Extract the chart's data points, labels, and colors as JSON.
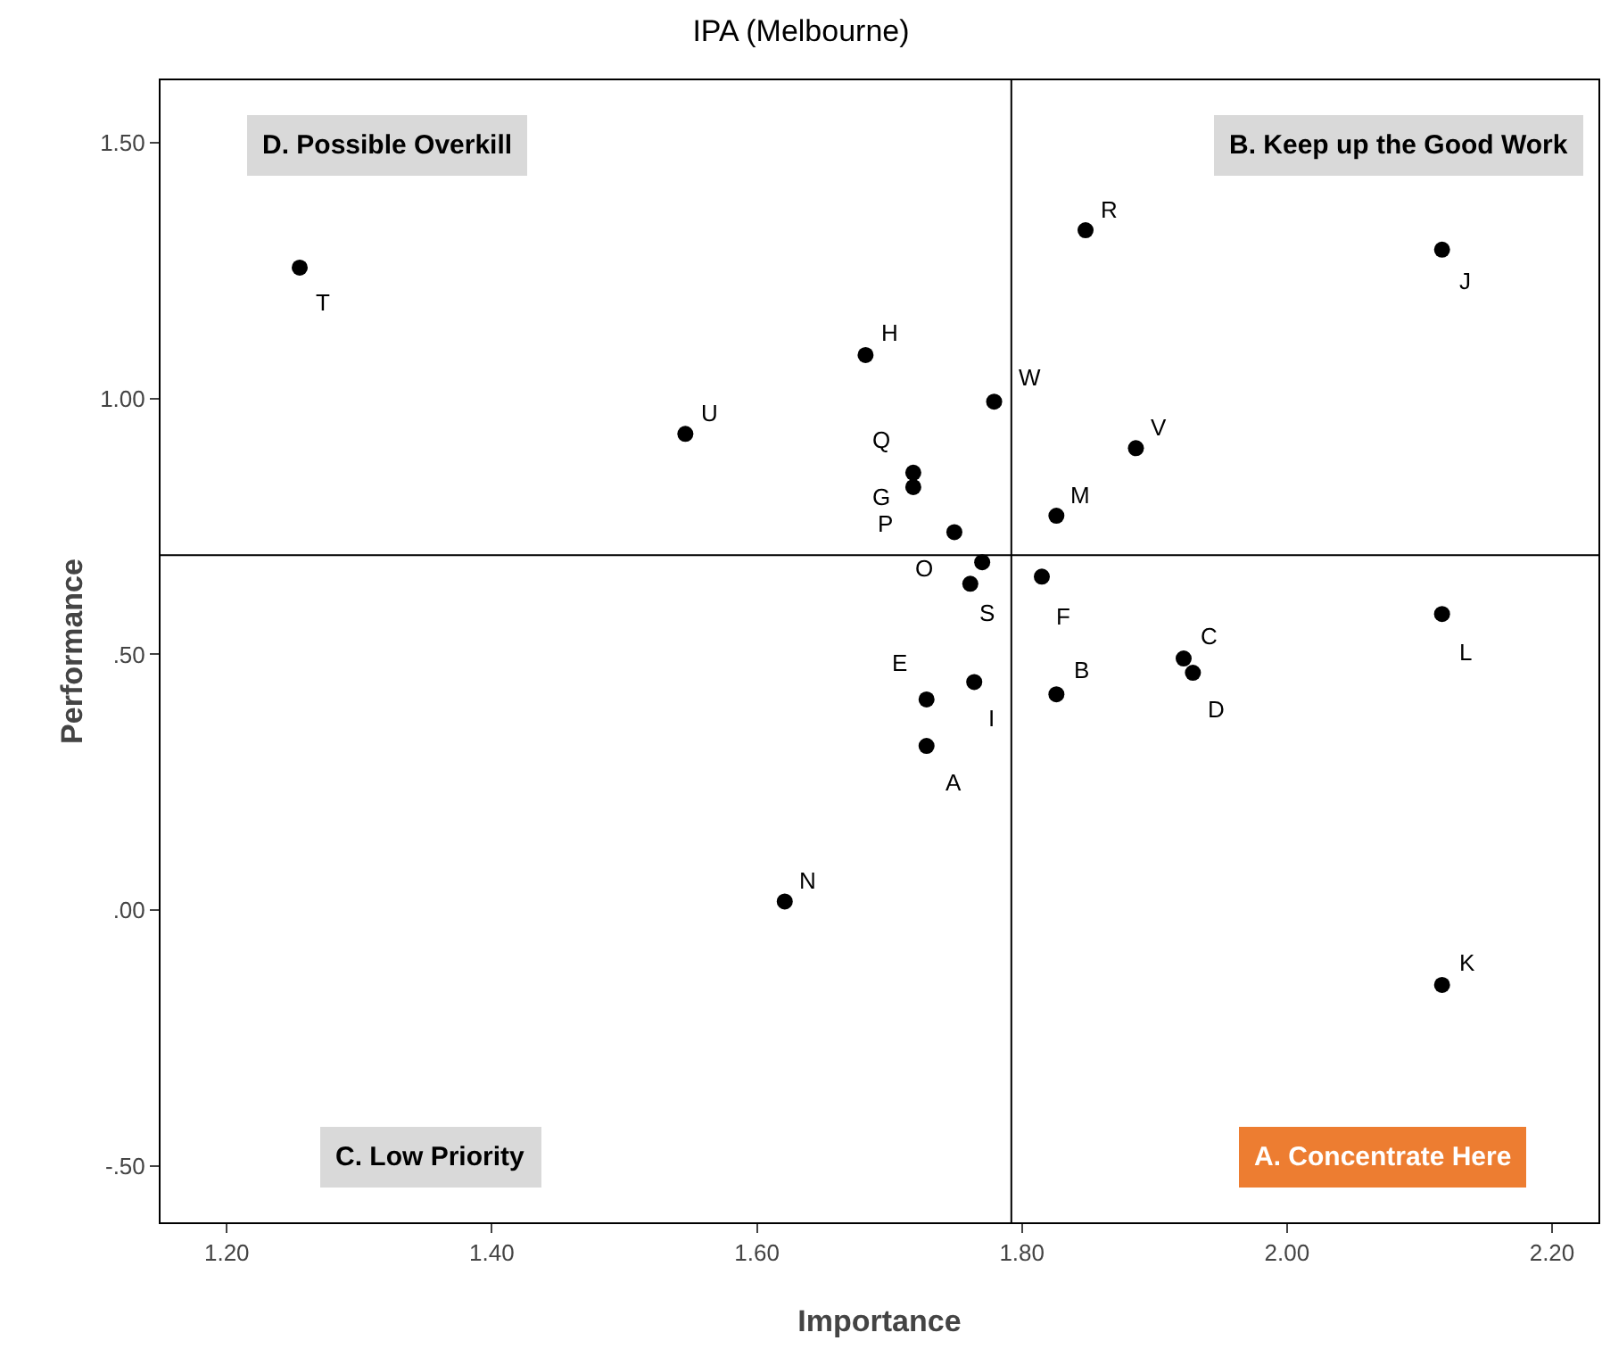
{
  "chart_data": {
    "type": "scatter",
    "title": "IPA (Melbourne)",
    "xlabel": "Importance",
    "ylabel": "Performance",
    "x": [
      1.728,
      1.826,
      1.922,
      1.929,
      1.728,
      1.815,
      1.718,
      1.682,
      1.764,
      2.117,
      2.117,
      2.117,
      1.826,
      1.621,
      1.77,
      1.749,
      1.718,
      1.848,
      1.761,
      1.255,
      1.546,
      1.886,
      1.779
    ],
    "series": [
      {
        "color": "#000000",
        "values": [
          0.321,
          0.422,
          0.492,
          0.464,
          0.412,
          0.652,
          0.827,
          1.085,
          0.446,
          1.291,
          -0.146,
          0.579,
          0.771,
          0.017,
          0.68,
          0.739,
          0.855,
          1.329,
          0.638,
          1.256,
          0.931,
          0.903,
          0.994
        ]
      }
    ],
    "marker": "circle",
    "xlim": [
      1.15,
      2.235
    ],
    "ylim": [
      -0.61,
      1.622
    ],
    "xticks": [
      {
        "value": 1.2,
        "label": "1.20"
      },
      {
        "value": 1.4,
        "label": "1.40"
      },
      {
        "value": 1.6,
        "label": "1.60"
      },
      {
        "value": 1.8,
        "label": "1.80"
      },
      {
        "value": 2.0,
        "label": "2.00"
      },
      {
        "value": 2.2,
        "label": "2.20"
      }
    ],
    "yticks": [
      {
        "value": -0.5,
        "label": "-.50"
      },
      {
        "value": 0,
        "label": ".00"
      },
      {
        "value": 0.5,
        "label": ".50"
      },
      {
        "value": 1.0,
        "label": "1.00"
      },
      {
        "value": 1.5,
        "label": "1.50"
      }
    ],
    "grid": false,
    "ref_lines": [
      {
        "axis": "x",
        "value": 1.792,
        "color": "#000000"
      },
      {
        "axis": "y",
        "value": 0.694,
        "color": "#000000"
      }
    ],
    "annotations": [
      "D. Possible Overkill",
      "B. Keep up the Good Work",
      "C. Low Priority",
      "A. Concentrate Here",
      {
        "text": "A",
        "x": 1.728,
        "y": 0.321
      },
      {
        "text": "B",
        "x": 1.826,
        "y": 0.422
      },
      {
        "text": "C",
        "x": 1.922,
        "y": 0.492
      },
      {
        "text": "D",
        "x": 1.929,
        "y": 0.464
      },
      {
        "text": "E",
        "x": 1.728,
        "y": 0.412
      },
      {
        "text": "F",
        "x": 1.815,
        "y": 0.652
      },
      {
        "text": "G",
        "x": 1.718,
        "y": 0.827
      },
      {
        "text": "H",
        "x": 1.682,
        "y": 1.085
      },
      {
        "text": "I",
        "x": 1.764,
        "y": 0.446
      },
      {
        "text": "J",
        "x": 2.117,
        "y": 1.291
      },
      {
        "text": "K",
        "x": 2.117,
        "y": -0.146
      },
      {
        "text": "L",
        "x": 2.117,
        "y": 0.579
      },
      {
        "text": "M",
        "x": 1.826,
        "y": 0.771
      },
      {
        "text": "N",
        "x": 1.621,
        "y": 0.017
      },
      {
        "text": "O",
        "x": 1.77,
        "y": 0.68
      },
      {
        "text": "P",
        "x": 1.749,
        "y": 0.739
      },
      {
        "text": "Q",
        "x": 1.718,
        "y": 0.855
      },
      {
        "text": "R",
        "x": 1.848,
        "y": 1.329
      },
      {
        "text": "S",
        "x": 1.761,
        "y": 0.638
      },
      {
        "text": "T",
        "x": 1.255,
        "y": 1.256
      },
      {
        "text": "U",
        "x": 1.546,
        "y": 0.931
      },
      {
        "text": "V",
        "x": 1.886,
        "y": 0.903
      },
      {
        "text": "W",
        "x": 1.779,
        "y": 0.994
      }
    ]
  }
}
